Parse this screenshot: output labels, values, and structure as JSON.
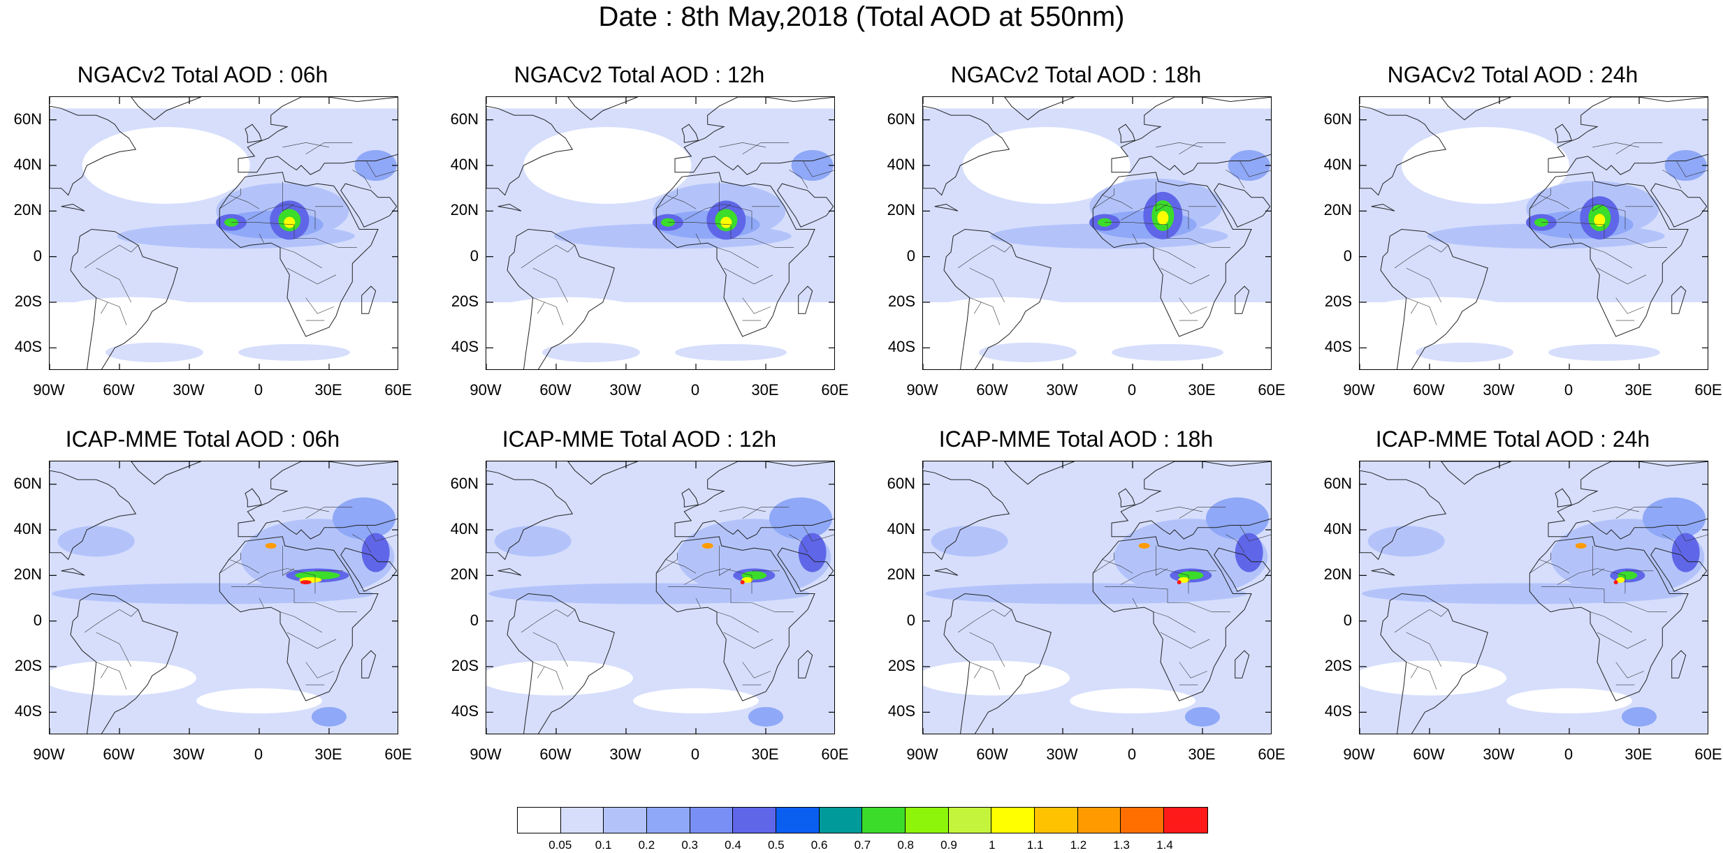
{
  "title": "Date : 8th May,2018 (Total AOD at 550nm)",
  "lat_labels": [
    "60N",
    "40N",
    "20N",
    "0",
    "20S",
    "40S"
  ],
  "lon_labels": [
    "90W",
    "60W",
    "30W",
    "0",
    "30E",
    "60E"
  ],
  "panels": [
    {
      "title": "NGACv2 Total AOD : 06h"
    },
    {
      "title": "NGACv2 Total AOD : 12h"
    },
    {
      "title": "NGACv2 Total AOD : 18h"
    },
    {
      "title": "NGACv2 Total AOD : 24h"
    },
    {
      "title": "ICAP-MME Total AOD : 06h"
    },
    {
      "title": "ICAP-MME Total AOD : 12h"
    },
    {
      "title": "ICAP-MME Total AOD : 18h"
    },
    {
      "title": "ICAP-MME Total AOD : 24h"
    }
  ],
  "colorbar": {
    "labels": [
      "0.05",
      "0.1",
      "0.2",
      "0.3",
      "0.4",
      "0.5",
      "0.6",
      "0.7",
      "0.8",
      "0.9",
      "1",
      "1.1",
      "1.2",
      "1.3",
      "1.4"
    ],
    "colors": [
      "#ffffff",
      "#d6defc",
      "#b3c3fa",
      "#8fa8f7",
      "#7a8ff5",
      "#5f66e8",
      "#0a5ef0",
      "#009a9a",
      "#3bdc2a",
      "#8cf50a",
      "#c4f53c",
      "#ffff00",
      "#ffc200",
      "#ff9b00",
      "#ff6f00",
      "#ff1a1a"
    ]
  },
  "map_colors": {
    "light": "#d6defc",
    "medium": "#b3c3fa",
    "mid": "#8fa8f7",
    "strong": "#5f66e8",
    "teal": "#009a9a",
    "green": "#3bdc2a",
    "yellow": "#ffff00",
    "orange": "#ff9b00",
    "red": "#ff1a1a"
  }
}
